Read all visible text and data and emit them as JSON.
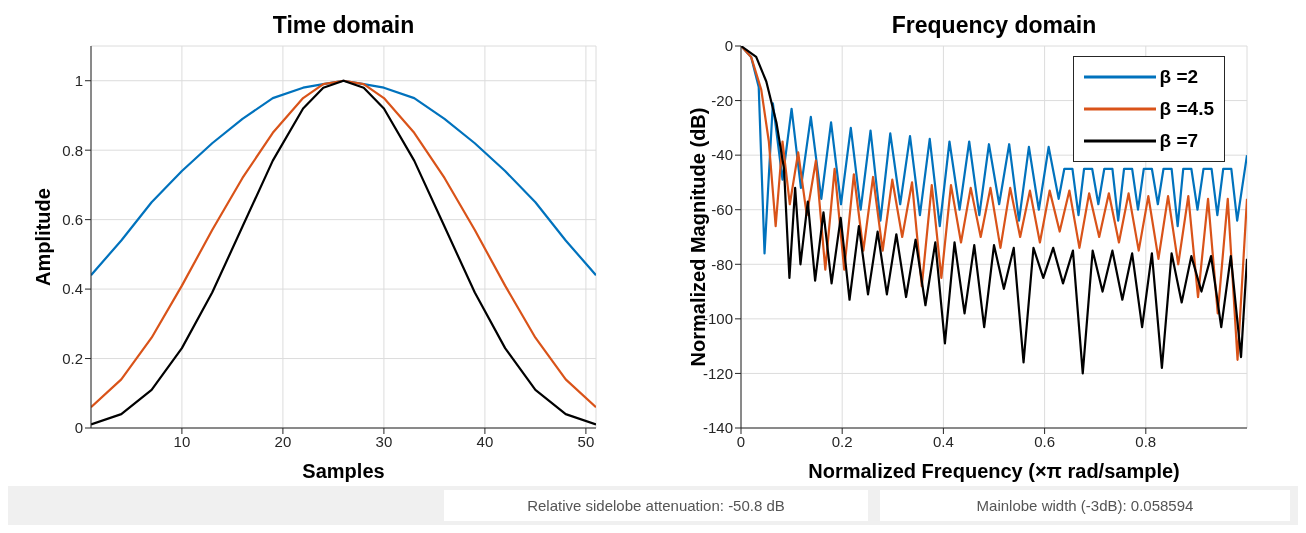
{
  "chart_data": [
    {
      "type": "line",
      "title": "Time domain",
      "xlabel": "Samples",
      "ylabel": "Amplitude",
      "xlim": [
        1,
        51
      ],
      "xticks": [
        10,
        20,
        30,
        40,
        50
      ],
      "ylim": [
        0,
        1.1
      ],
      "yticks": [
        0,
        0.2,
        0.4,
        0.6,
        0.8,
        1
      ],
      "grid": true,
      "x": [
        1,
        4,
        7,
        10,
        13,
        16,
        19,
        22,
        24,
        26,
        28,
        30,
        33,
        36,
        39,
        42,
        45,
        48,
        51
      ],
      "series": [
        {
          "color": "#0072bd",
          "values": [
            0.44,
            0.54,
            0.65,
            0.74,
            0.82,
            0.89,
            0.95,
            0.98,
            0.99,
            1,
            0.99,
            0.98,
            0.95,
            0.89,
            0.82,
            0.74,
            0.65,
            0.54,
            0.44
          ]
        },
        {
          "color": "#d95319",
          "values": [
            0.06,
            0.14,
            0.26,
            0.41,
            0.57,
            0.72,
            0.85,
            0.95,
            0.99,
            1,
            0.99,
            0.95,
            0.85,
            0.72,
            0.57,
            0.41,
            0.26,
            0.14,
            0.06
          ]
        },
        {
          "color": "#000000",
          "values": [
            0.01,
            0.04,
            0.11,
            0.23,
            0.39,
            0.58,
            0.77,
            0.92,
            0.98,
            1,
            0.98,
            0.92,
            0.77,
            0.58,
            0.39,
            0.23,
            0.11,
            0.04,
            0.01
          ]
        }
      ]
    },
    {
      "type": "line",
      "title": "Frequency domain",
      "xlabel": "Normalized Frequency  (×π rad/sample)",
      "ylabel": "Normalized Magnitude (dB)",
      "xlim": [
        0,
        1
      ],
      "xticks": [
        0,
        0.2,
        0.4,
        0.6,
        0.8
      ],
      "ylim": [
        -140,
        0
      ],
      "yticks": [
        -140,
        -120,
        -100,
        -80,
        -60,
        -40,
        -20,
        0
      ],
      "grid": true,
      "legend": "top right",
      "annotations": [
        "Relative sidelobe attenuation: -50.8 dB",
        "Mainlobe width (-3dB): 0.058594"
      ],
      "series": [
        {
          "name": "β =2",
          "color": "#0072bd",
          "x": [
            0,
            0.02,
            0.035,
            0.0465,
            0.063,
            0.082,
            0.1,
            0.1184,
            0.138,
            0.1587,
            0.178,
            0.1976,
            0.217,
            0.2365,
            0.256,
            0.2755,
            0.295,
            0.3146,
            0.334,
            0.3536,
            0.373,
            0.3928,
            0.412,
            0.432,
            0.451,
            0.471,
            0.49,
            0.5102,
            0.53,
            0.5494,
            0.569,
            0.5886,
            0.608,
            0.6278,
            0.639,
            0.655,
            0.667,
            0.678,
            0.694,
            0.7062,
            0.718,
            0.734,
            0.7454,
            0.757,
            0.773,
            0.7846,
            0.796,
            0.812,
            0.8238,
            0.835,
            0.851,
            0.863,
            0.874,
            0.89,
            0.9022,
            0.914,
            0.93,
            0.9414,
            0.953,
            0.969,
            0.9806,
            1
          ],
          "values": [
            0,
            -4,
            -15,
            -76,
            -21,
            -49,
            -23,
            -52,
            -26,
            -56,
            -28,
            -58,
            -30,
            -60,
            -31,
            -64,
            -32,
            -58,
            -33,
            -62,
            -34,
            -66,
            -35,
            -60,
            -35,
            -62,
            -36,
            -58,
            -36,
            -64,
            -37,
            -60,
            -37,
            -56,
            -45,
            -45,
            -62,
            -45,
            -45,
            -58,
            -45,
            -45,
            -64,
            -45,
            -45,
            -60,
            -45,
            -45,
            -58,
            -45,
            -45,
            -66,
            -45,
            -45,
            -60,
            -45,
            -45,
            -62,
            -45,
            -45,
            -64,
            -40
          ]
        },
        {
          "name": "β =4.5",
          "color": "#d95319",
          "x": [
            0,
            0.02,
            0.04,
            0.055,
            0.0685,
            0.082,
            0.0965,
            0.113,
            0.13,
            0.148,
            0.1666,
            0.185,
            0.204,
            0.223,
            0.2418,
            0.261,
            0.28,
            0.299,
            0.3186,
            0.338,
            0.3573,
            0.377,
            0.396,
            0.415,
            0.4348,
            0.454,
            0.4737,
            0.493,
            0.5127,
            0.532,
            0.5517,
            0.571,
            0.5907,
            0.61,
            0.6298,
            0.649,
            0.6688,
            0.688,
            0.7079,
            0.727,
            0.7469,
            0.766,
            0.786,
            0.805,
            0.825,
            0.844,
            0.8641,
            0.884,
            0.9032,
            0.923,
            0.9422,
            0.962,
            0.9813,
            1
          ],
          "values": [
            0,
            -4,
            -16,
            -35,
            -66,
            -35,
            -58,
            -39,
            -62,
            -42,
            -82,
            -45,
            -82,
            -47,
            -75,
            -48,
            -75,
            -49,
            -70,
            -50,
            -88,
            -51,
            -85,
            -51,
            -72,
            -52,
            -70,
            -52,
            -74,
            -52,
            -70,
            -53,
            -72,
            -53,
            -68,
            -53,
            -74,
            -54,
            -70,
            -54,
            -72,
            -54,
            -75,
            -55,
            -78,
            -55,
            -80,
            -55,
            -92,
            -56,
            -98,
            -56,
            -115,
            -56
          ]
        },
        {
          "name": "β =7",
          "color": "#000000",
          "x": [
            0,
            0.03,
            0.05,
            0.07,
            0.085,
            0.0957,
            0.107,
            0.1175,
            0.132,
            0.1465,
            0.163,
            0.179,
            0.197,
            0.2145,
            0.233,
            0.251,
            0.27,
            0.2883,
            0.307,
            0.3262,
            0.345,
            0.3645,
            0.384,
            0.403,
            0.422,
            0.4418,
            0.461,
            0.4806,
            0.5,
            0.5195,
            0.539,
            0.5584,
            0.578,
            0.5974,
            0.617,
            0.6364,
            0.656,
            0.6754,
            0.695,
            0.7145,
            0.734,
            0.7536,
            0.773,
            0.7927,
            0.812,
            0.8318,
            0.851,
            0.8709,
            0.89,
            0.91,
            0.929,
            0.9491,
            0.968,
            0.9882,
            1
          ],
          "values": [
            0,
            -4,
            -13,
            -28,
            -45,
            -85,
            -52,
            -80,
            -57,
            -86,
            -61,
            -87,
            -63,
            -93,
            -66,
            -91,
            -68,
            -91,
            -69,
            -92,
            -71,
            -95,
            -72,
            -109,
            -72,
            -98,
            -73,
            -103,
            -73,
            -89,
            -74,
            -116,
            -74,
            -85,
            -74,
            -87,
            -75,
            -120,
            -75,
            -90,
            -75,
            -93,
            -76,
            -103,
            -76,
            -118,
            -76,
            -94,
            -77,
            -90,
            -77,
            -103,
            -77,
            -114,
            -78
          ]
        }
      ]
    }
  ]
}
